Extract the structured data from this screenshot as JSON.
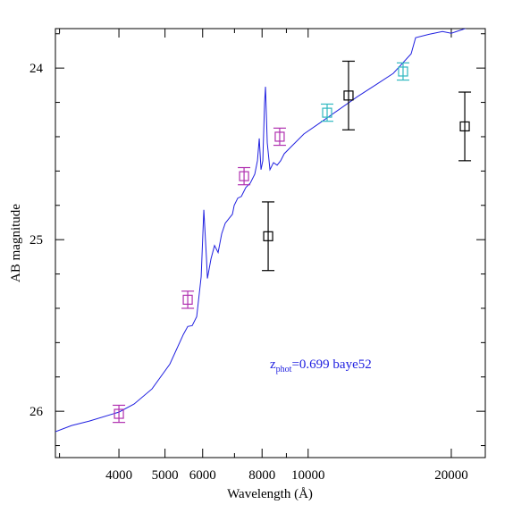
{
  "chart_data": {
    "type": "line",
    "xlabel": "Wavelength (Å)",
    "ylabel": "AB magnitude",
    "annotation": {
      "main": "z",
      "sub": "phot",
      "rest": "=0.699 baye52",
      "color": "#2020e0"
    },
    "xlog": true,
    "yinverted": true,
    "xlim": [
      2941,
      23580
    ],
    "ylim": [
      26.27,
      23.77
    ],
    "xticks": [
      4000,
      5000,
      6000,
      8000,
      10000,
      20000
    ],
    "xminorticks": [
      3000,
      7000,
      9000
    ],
    "yticks": [
      24,
      25,
      26
    ],
    "yminorticks": [
      23.8,
      24.2,
      24.4,
      24.6,
      24.8,
      25.2,
      25.4,
      25.6,
      25.8,
      26.2
    ],
    "series": [
      {
        "type": "line",
        "color": "#2020e0",
        "x": [
          2941,
          3181,
          3467,
          4000,
          4304,
          4694,
          5119,
          5463,
          5582,
          5704,
          5829,
          5957,
          6034,
          6113,
          6140,
          6247,
          6355,
          6466,
          6579,
          6694,
          6811,
          6930,
          6990,
          7112,
          7237,
          7395,
          7557,
          7723,
          7823,
          7892,
          7959,
          8029,
          8098,
          8134,
          8204,
          8311,
          8456,
          8604,
          8754,
          8907,
          9182,
          9797,
          10683,
          11648,
          12701,
          13849,
          15100,
          16465,
          16827,
          17958,
          19162,
          20000,
          21351,
          22297
        ],
        "values": [
          26.119,
          26.083,
          26.057,
          26.005,
          25.958,
          25.87,
          25.725,
          25.553,
          25.506,
          25.501,
          25.449,
          25.216,
          24.826,
          25.112,
          25.226,
          25.112,
          25.034,
          25.075,
          24.966,
          24.904,
          24.878,
          24.852,
          24.8,
          24.758,
          24.748,
          24.696,
          24.67,
          24.618,
          24.54,
          24.41,
          24.592,
          24.54,
          24.203,
          24.109,
          24.436,
          24.592,
          24.551,
          24.566,
          24.54,
          24.499,
          24.462,
          24.384,
          24.312,
          24.239,
          24.166,
          24.099,
          24.031,
          23.917,
          23.823,
          23.803,
          23.787,
          23.797,
          23.771,
          23.751
        ]
      },
      {
        "type": "errorbar",
        "color": "#b030b0",
        "x": [
          4000,
          5582,
          7332,
          8713
        ],
        "values": [
          26.015,
          25.35,
          24.63,
          24.4
        ],
        "errors": [
          0.05,
          0.05,
          0.05,
          0.05
        ]
      },
      {
        "type": "errorbar",
        "color": "#30b8c0",
        "x": [
          10962,
          15834
        ],
        "values": [
          24.26,
          24.02
        ],
        "errors": [
          0.05,
          0.05
        ]
      },
      {
        "type": "errorbar",
        "color": "#000000",
        "x": [
          8240,
          12160,
          21350
        ],
        "values": [
          24.98,
          24.16,
          24.34
        ],
        "errors": [
          0.2,
          0.2,
          0.2
        ]
      }
    ]
  }
}
